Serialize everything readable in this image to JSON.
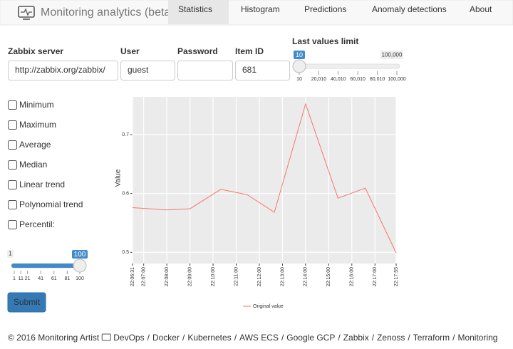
{
  "navbar": {
    "brand": "Monitoring analytics (beta)",
    "tabs": [
      "Statistics",
      "Histogram",
      "Predictions",
      "Anomaly detections",
      "About"
    ],
    "active": 0
  },
  "form": {
    "fields": [
      {
        "label": "Zabbix server",
        "placeholder": "http://zabbix.org/zabbix/"
      },
      {
        "label": "User",
        "placeholder": "guest"
      },
      {
        "label": "Password"
      },
      {
        "label": "Item ID",
        "placeholder": "681"
      }
    ],
    "limit_slider": {
      "label": "Last values limit",
      "min": 10,
      "max": {
        "value": 100000,
        "label": "100,000"
      },
      "value": 10,
      "ticks": [
        10,
        {
          "value": 20010,
          "label": "20,010"
        },
        {
          "value": 40010,
          "label": "40,010"
        },
        {
          "value": 60010,
          "label": "60,010"
        },
        {
          "value": 80010,
          "label": "80,010"
        },
        {
          "value": 100000,
          "label": "100,000"
        }
      ]
    }
  },
  "options": [
    "Minimum",
    "Maximum",
    "Average",
    "Median",
    "Linear trend",
    "Polynomial trend",
    "Percentil:"
  ],
  "percentil_slider": {
    "min": 1,
    "max": 100,
    "value": 100,
    "ticks": [
      1,
      11,
      21,
      41,
      61,
      81,
      100
    ]
  },
  "submit": "Submit",
  "chart_data": {
    "type": "line",
    "ylabel": "Value",
    "x": [
      "22:06:31",
      "22:08:00",
      "22:09:00",
      "22:10:20",
      "22:11:28",
      "22:12:39",
      "22:14:00",
      "22:15:24",
      "22:16:35",
      "22:17:55"
    ],
    "series": [
      {
        "name": "Original value",
        "color": "#f8766d",
        "values": [
          0.576,
          0.572,
          0.574,
          0.607,
          0.598,
          0.568,
          0.752,
          0.592,
          0.609,
          0.499
        ]
      }
    ],
    "xlim": [
      "22:06:31",
      "22:17:55"
    ],
    "xticks": [
      "22:06:31",
      "22:07:00",
      "22:08:00",
      "22:09:00",
      "22:10:00",
      "22:11:00",
      "22:12:00",
      "22:13:00",
      "22:14:00",
      "22:15:00",
      "22:16:00",
      "22:17:00",
      "22:17:55"
    ],
    "ylim": [
      0.481,
      0.764
    ],
    "yticks": [
      0.5,
      0.6,
      0.7
    ],
    "grid": true
  },
  "footer": {
    "copyright": "© 2016 Monitoring Artist",
    "links": [
      "DevOps",
      "Docker",
      "Kubernetes",
      "AWS ECS",
      "Google GCP",
      "Zabbix",
      "Zenoss",
      "Terraform",
      "Monitoring"
    ],
    "separator": "/"
  }
}
